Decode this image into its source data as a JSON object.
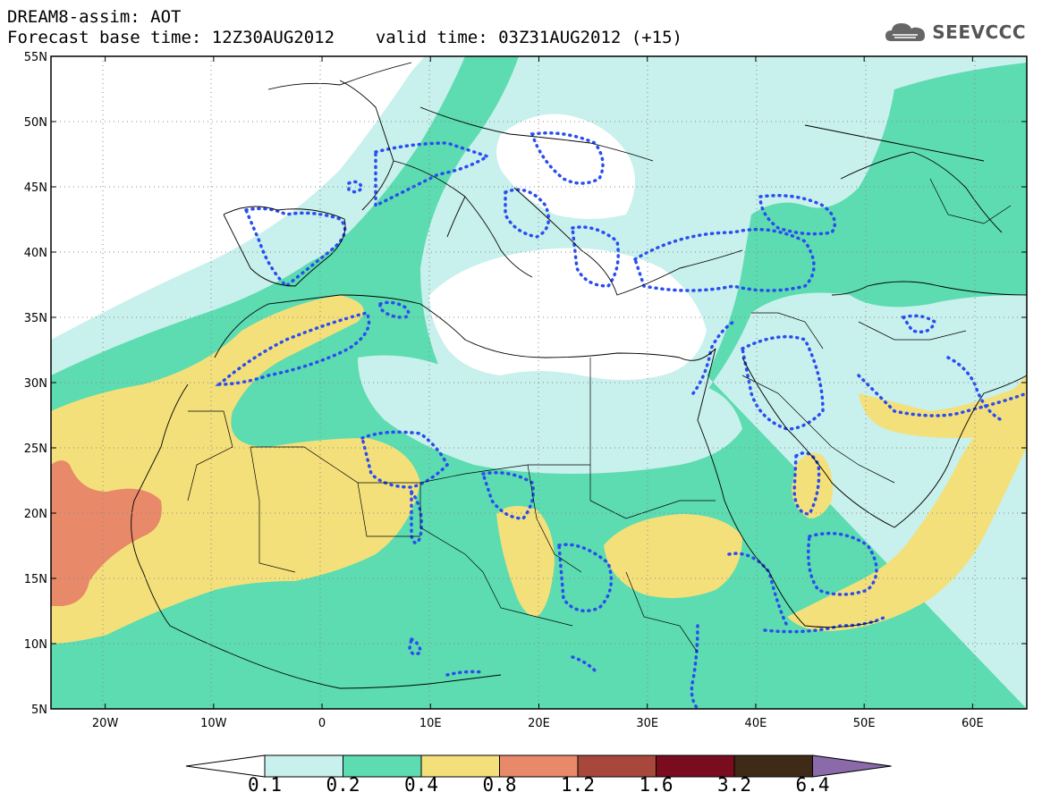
{
  "header": {
    "title": "DREAM8-assim: AOT",
    "base_time": "Forecast base time: 12Z30AUG2012",
    "valid_time": "valid time: 03Z31AUG2012 (+15)"
  },
  "logo": {
    "text": "SEEVCCC",
    "icon": "cloud-icon"
  },
  "map": {
    "projection": "lat-lon",
    "lon_range": [
      -25,
      65
    ],
    "lat_range": [
      5,
      55
    ],
    "lon_ticks": [
      "20W",
      "10W",
      "0",
      "10E",
      "20E",
      "30E",
      "40E",
      "50E",
      "60E"
    ],
    "lat_ticks": [
      "55N",
      "50N",
      "45N",
      "40N",
      "35N",
      "30N",
      "25N",
      "20N",
      "15N",
      "10N",
      "5N"
    ],
    "grid": "dotted",
    "overlay": "dotted blue contours (dust observation/assimilation regions)"
  },
  "colorbar": {
    "labels": [
      "0.1",
      "0.2",
      "0.4",
      "0.8",
      "1.2",
      "1.6",
      "3.2",
      "6.4"
    ],
    "colors": [
      "#ffffff",
      "#c8f0ec",
      "#5cdcb0",
      "#f4e07a",
      "#e8896a",
      "#a8483c",
      "#7a0c20",
      "#3e2a16",
      "#8a6aa8"
    ]
  },
  "colors": {
    "aot_0_1_0_2": "#c8f0ec",
    "aot_0_2_0_4": "#5cdcb0",
    "aot_0_4_0_8": "#f4e07a",
    "aot_0_8_1_2": "#e8896a",
    "contour": "#2a4df0"
  }
}
